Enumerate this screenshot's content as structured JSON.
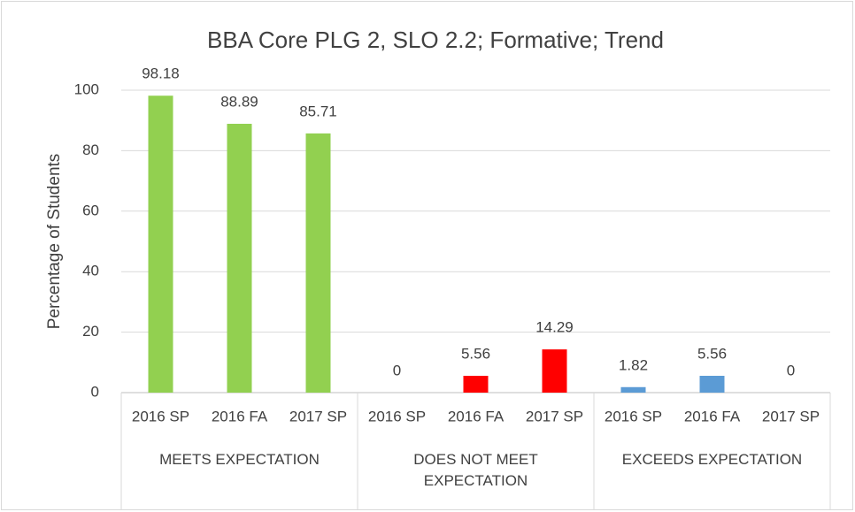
{
  "chart_data": {
    "type": "bar",
    "title": "BBA Core PLG 2, SLO 2.2; Formative; Trend",
    "y_label": "Percentage of Students",
    "groups": [
      {
        "name": "MEETS EXPECTATION",
        "color": "#92d050",
        "categories": [
          "2016 SP",
          "2016 FA",
          "2017 SP"
        ],
        "values": [
          98.18,
          88.89,
          85.71
        ]
      },
      {
        "name": "DOES NOT MEET EXPECTATION",
        "color": "#ff0000",
        "categories": [
          "2016 SP",
          "2016 FA",
          "2017 SP"
        ],
        "values": [
          0,
          5.56,
          14.29
        ]
      },
      {
        "name": "EXCEEDS EXPECTATION",
        "color": "#5b9bd5",
        "categories": [
          "2016 SP",
          "2016 FA",
          "2017 SP"
        ],
        "values": [
          1.82,
          5.56,
          0
        ]
      }
    ],
    "ylim": [
      0,
      100
    ],
    "yticks": [
      0,
      20,
      40,
      60,
      80,
      100
    ],
    "grid": true
  }
}
